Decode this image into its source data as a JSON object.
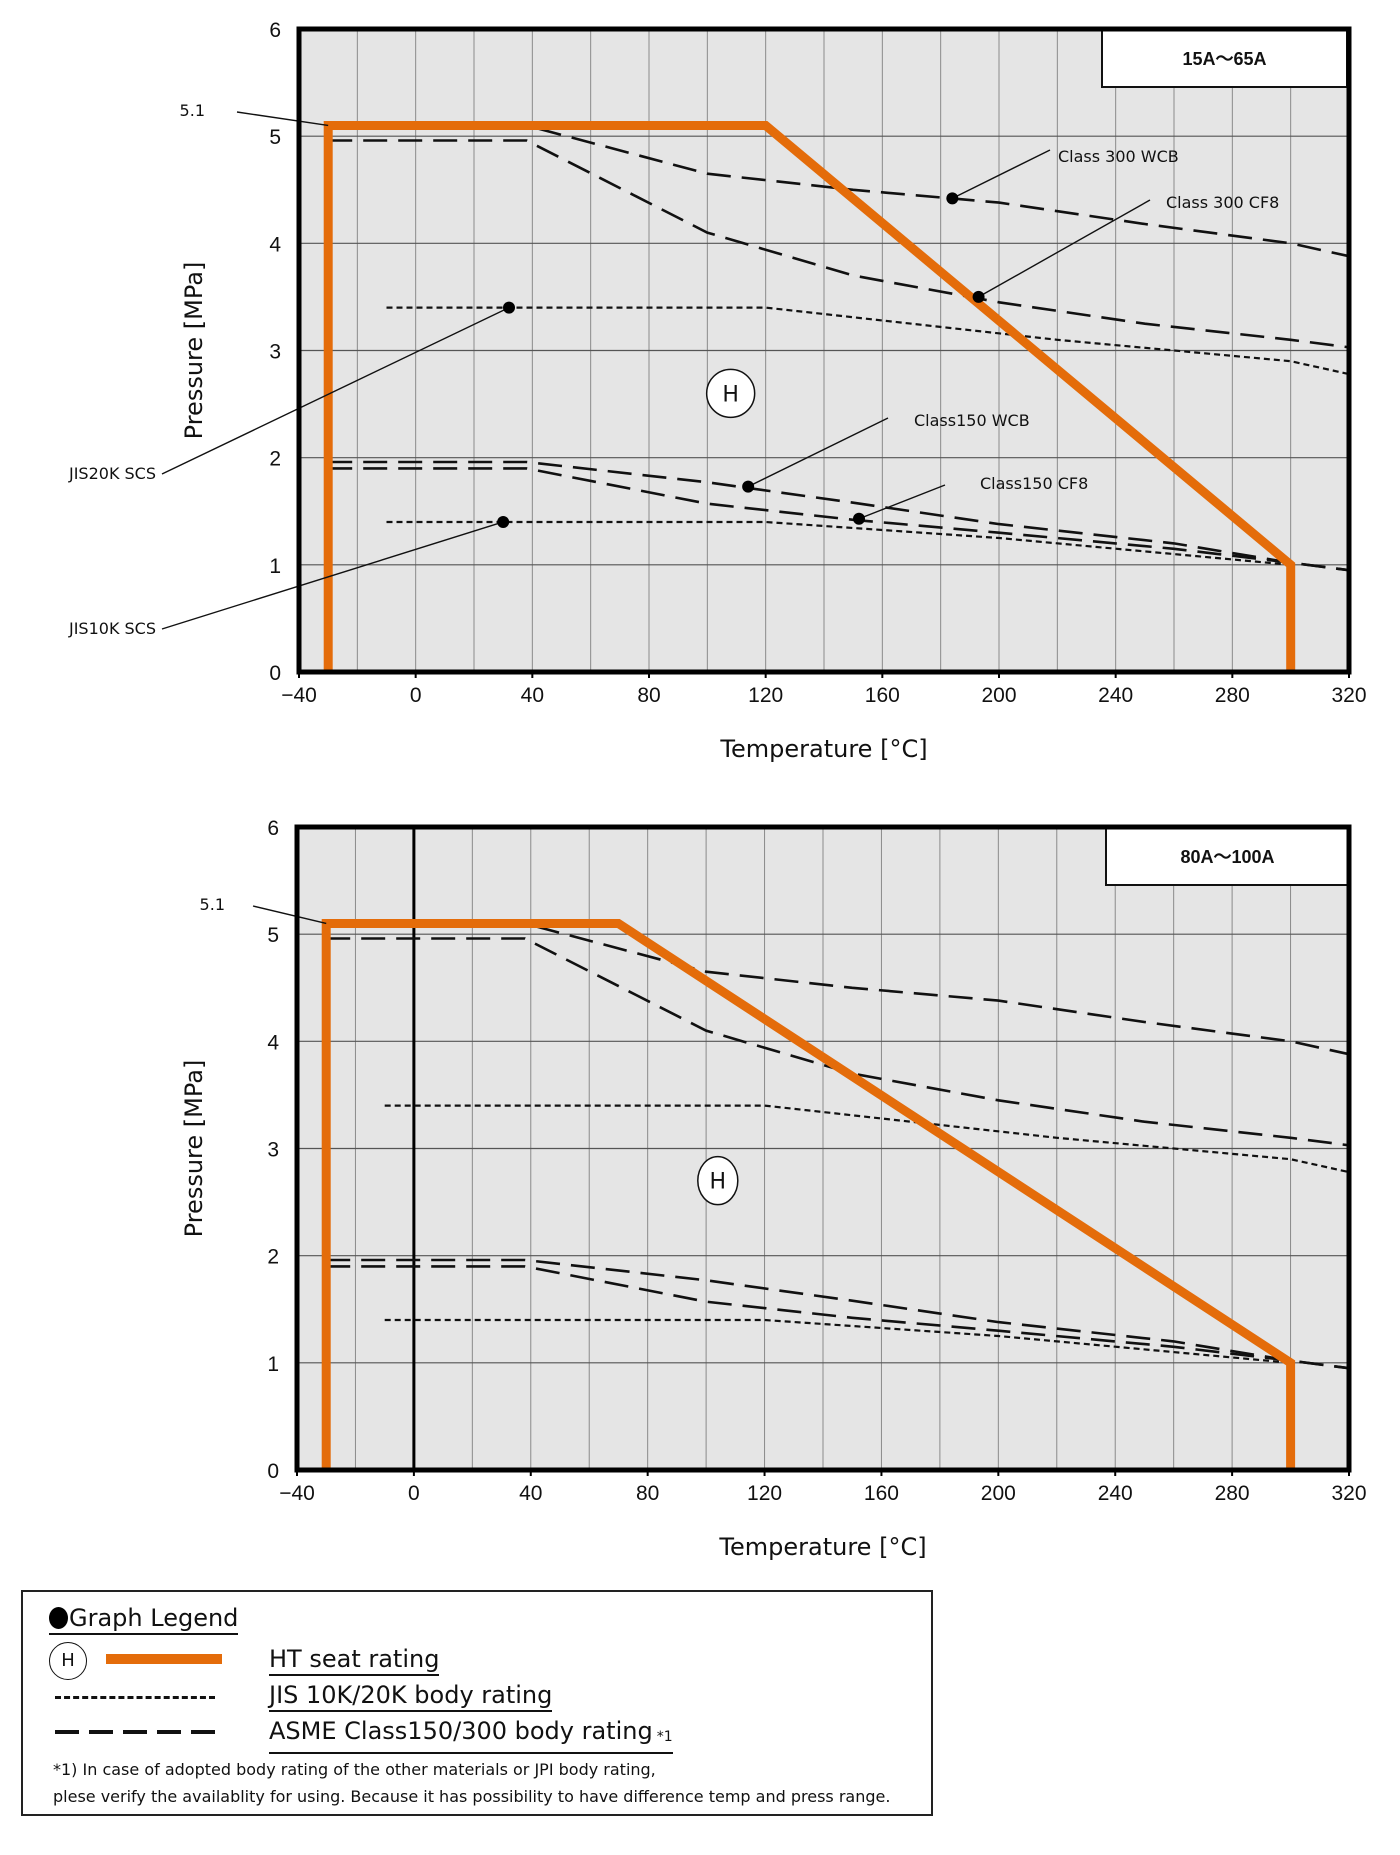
{
  "colors": {
    "ht_seat": "#E46C0A",
    "plot_bg": "#E5E5E5",
    "body_rating": "#111111"
  },
  "chart_data": [
    {
      "type": "line",
      "title": "15A～65A",
      "xlabel": "Temperature [°C]",
      "ylabel": "Pressure [MPa]",
      "xlim": [
        -40,
        320
      ],
      "ylim": [
        0,
        6
      ],
      "xticks": [
        -40,
        0,
        40,
        80,
        120,
        160,
        200,
        240,
        280,
        320
      ],
      "xtick_labels": [
        "−40",
        "0",
        "40",
        "80",
        "120",
        "160",
        "200",
        "240",
        "280",
        "320"
      ],
      "yticks": [
        0,
        1,
        2,
        3,
        4,
        5,
        6
      ],
      "ytick_labels": [
        "0",
        "1",
        "2",
        "3",
        "4",
        "5",
        "6"
      ],
      "grid": true,
      "size_label_position": "top-right",
      "seat_marker": {
        "text": "H",
        "x": 108,
        "y": 2.6
      },
      "series": [
        {
          "name": "HT seat rating",
          "style": "orange-solid",
          "points": [
            [
              -30,
              0
            ],
            [
              -30,
              5.1
            ],
            [
              120,
              5.1
            ],
            [
              300,
              1.0
            ],
            [
              300,
              0
            ]
          ]
        },
        {
          "name": "Class 300 WCB",
          "style": "dashed",
          "points": [
            [
              -30,
              5.1
            ],
            [
              38,
              5.1
            ],
            [
              100,
              4.65
            ],
            [
              150,
              4.5
            ],
            [
              200,
              4.38
            ],
            [
              250,
              4.18
            ],
            [
              300,
              4.0
            ],
            [
              320,
              3.88
            ]
          ]
        },
        {
          "name": "Class 300 CF8",
          "style": "dashed",
          "points": [
            [
              -30,
              4.96
            ],
            [
              38,
              4.96
            ],
            [
              100,
              4.1
            ],
            [
              150,
              3.7
            ],
            [
              200,
              3.45
            ],
            [
              250,
              3.25
            ],
            [
              300,
              3.1
            ],
            [
              320,
              3.03
            ]
          ]
        },
        {
          "name": "JIS20K SCS",
          "style": "dotted",
          "points": [
            [
              -10,
              3.4
            ],
            [
              120,
              3.4
            ],
            [
              220,
              3.1
            ],
            [
              300,
              2.9
            ],
            [
              320,
              2.78
            ]
          ]
        },
        {
          "name": "Class150 WCB",
          "style": "dashed",
          "points": [
            [
              -30,
              1.96
            ],
            [
              38,
              1.96
            ],
            [
              100,
              1.77
            ],
            [
              150,
              1.58
            ],
            [
              200,
              1.38
            ],
            [
              260,
              1.2
            ],
            [
              300,
              1.02
            ],
            [
              320,
              0.95
            ]
          ]
        },
        {
          "name": "Class150 CF8",
          "style": "dashed",
          "points": [
            [
              -30,
              1.9
            ],
            [
              38,
              1.9
            ],
            [
              100,
              1.57
            ],
            [
              150,
              1.42
            ],
            [
              200,
              1.3
            ],
            [
              260,
              1.15
            ],
            [
              300,
              1.02
            ],
            [
              320,
              0.95
            ]
          ]
        },
        {
          "name": "JIS10K SCS",
          "style": "dotted",
          "points": [
            [
              -10,
              1.4
            ],
            [
              120,
              1.4
            ],
            [
              200,
              1.25
            ],
            [
              300,
              1.0
            ]
          ]
        }
      ],
      "annotations": [
        {
          "text": "5.1",
          "point": [
            -30,
            5.1
          ],
          "label_side": "left"
        },
        {
          "text": "Class 300 WCB",
          "point": [
            184,
            4.42
          ]
        },
        {
          "text": "Class 300 CF8",
          "point": [
            193,
            3.5
          ]
        },
        {
          "text": "JIS20K SCS",
          "point": [
            32,
            3.4
          ]
        },
        {
          "text": "Class150 WCB",
          "point": [
            114,
            1.73
          ]
        },
        {
          "text": "Class150 CF8",
          "point": [
            152,
            1.43
          ]
        },
        {
          "text": "JIS10K SCS",
          "point": [
            30,
            1.4
          ]
        }
      ]
    },
    {
      "type": "line",
      "title": "80A～100A",
      "xlabel": "Temperature [°C]",
      "ylabel": "Pressure [MPa]",
      "xlim": [
        -40,
        320
      ],
      "ylim": [
        0,
        6
      ],
      "xticks": [
        -40,
        0,
        40,
        80,
        120,
        160,
        200,
        240,
        280,
        320
      ],
      "xtick_labels": [
        "−40",
        "0",
        "40",
        "80",
        "120",
        "160",
        "200",
        "240",
        "280",
        "320"
      ],
      "yticks": [
        0,
        1,
        2,
        3,
        4,
        5,
        6
      ],
      "ytick_labels": [
        "0",
        "1",
        "2",
        "3",
        "4",
        "5",
        "6"
      ],
      "grid": true,
      "size_label_position": "top-right",
      "seat_marker": {
        "text": "H",
        "x": 104,
        "y": 2.7
      },
      "series": [
        {
          "name": "HT seat rating",
          "style": "orange-solid",
          "points": [
            [
              -30,
              0
            ],
            [
              -30,
              5.1
            ],
            [
              70,
              5.1
            ],
            [
              300,
              1.0
            ],
            [
              300,
              0
            ]
          ]
        },
        {
          "name": "Class 300 WCB",
          "style": "dashed",
          "points": [
            [
              -30,
              5.1
            ],
            [
              38,
              5.1
            ],
            [
              100,
              4.65
            ],
            [
              150,
              4.5
            ],
            [
              200,
              4.38
            ],
            [
              250,
              4.18
            ],
            [
              300,
              4.0
            ],
            [
              320,
              3.88
            ]
          ]
        },
        {
          "name": "Class 300 CF8",
          "style": "dashed",
          "points": [
            [
              -30,
              4.96
            ],
            [
              38,
              4.96
            ],
            [
              100,
              4.1
            ],
            [
              150,
              3.7
            ],
            [
              200,
              3.45
            ],
            [
              250,
              3.25
            ],
            [
              300,
              3.1
            ],
            [
              320,
              3.03
            ]
          ]
        },
        {
          "name": "JIS20K SCS",
          "style": "dotted",
          "points": [
            [
              -10,
              3.4
            ],
            [
              120,
              3.4
            ],
            [
              220,
              3.1
            ],
            [
              300,
              2.9
            ],
            [
              320,
              2.78
            ]
          ]
        },
        {
          "name": "Class150 WCB",
          "style": "dashed",
          "points": [
            [
              -30,
              1.96
            ],
            [
              38,
              1.96
            ],
            [
              100,
              1.77
            ],
            [
              150,
              1.58
            ],
            [
              200,
              1.38
            ],
            [
              260,
              1.2
            ],
            [
              300,
              1.02
            ],
            [
              320,
              0.95
            ]
          ]
        },
        {
          "name": "Class150 CF8",
          "style": "dashed",
          "points": [
            [
              -30,
              1.9
            ],
            [
              38,
              1.9
            ],
            [
              100,
              1.57
            ],
            [
              150,
              1.42
            ],
            [
              200,
              1.3
            ],
            [
              260,
              1.15
            ],
            [
              300,
              1.02
            ],
            [
              320,
              0.95
            ]
          ]
        },
        {
          "name": "JIS10K SCS",
          "style": "dotted",
          "points": [
            [
              -10,
              1.4
            ],
            [
              120,
              1.4
            ],
            [
              200,
              1.25
            ],
            [
              300,
              1.0
            ]
          ]
        }
      ],
      "annotations": [
        {
          "text": "5.1",
          "point": [
            -30,
            5.1
          ],
          "label_side": "left"
        }
      ]
    }
  ],
  "legend": {
    "title": "Graph Legend",
    "items": [
      {
        "marker": "H",
        "label": "HT seat rating",
        "style": "orange-solid"
      },
      {
        "label": "JIS 10K/20K body rating",
        "style": "dotted"
      },
      {
        "label": "ASME Class150/300 body rating",
        "note_ref": "*1",
        "style": "dashed"
      }
    ],
    "footnote_lines": [
      "*1) In case of adopted body rating of the other materials or JPI body rating,",
      "plese verify the availablity for using. Because it has possibility to have difference temp and press range."
    ]
  }
}
